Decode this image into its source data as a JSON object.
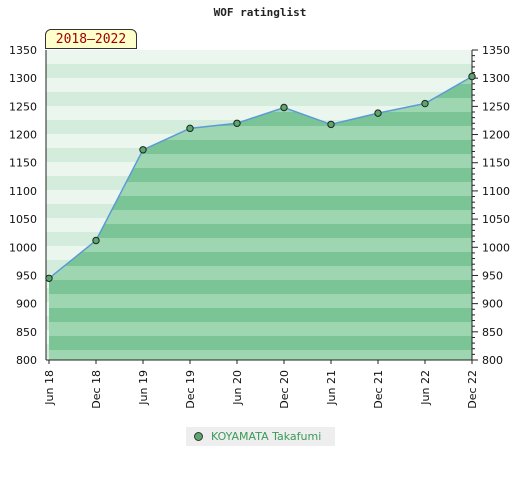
{
  "chart_data": {
    "type": "area",
    "title": "WOF ratinglist",
    "period_label": "2018–2022",
    "categories": [
      "Jun 18",
      "Dec 18",
      "Jun 19",
      "Dec 19",
      "Jun 20",
      "Dec 20",
      "Jun 21",
      "Dec 21",
      "Jun 22",
      "Dec 22"
    ],
    "series": [
      {
        "name": "KOYAMATA Takafumi",
        "values": [
          945,
          1012,
          1173,
          1211,
          1220,
          1248,
          1218,
          1238,
          1255,
          1303
        ]
      }
    ],
    "ylim": [
      800,
      1350
    ],
    "yticks": [
      800,
      850,
      900,
      950,
      1000,
      1050,
      1100,
      1150,
      1200,
      1250,
      1300,
      1350
    ],
    "y_axis_both_sides": true,
    "grid": false,
    "legend_position": "bottom",
    "colors": {
      "line": "#5b9bd5",
      "marker": "#5aa86c",
      "fill_dark": "#7bc496",
      "fill_light": "#9fd6b2",
      "plot_band_light": "#eaf6ee",
      "plot_band_mid": "#d3ecdb"
    }
  }
}
